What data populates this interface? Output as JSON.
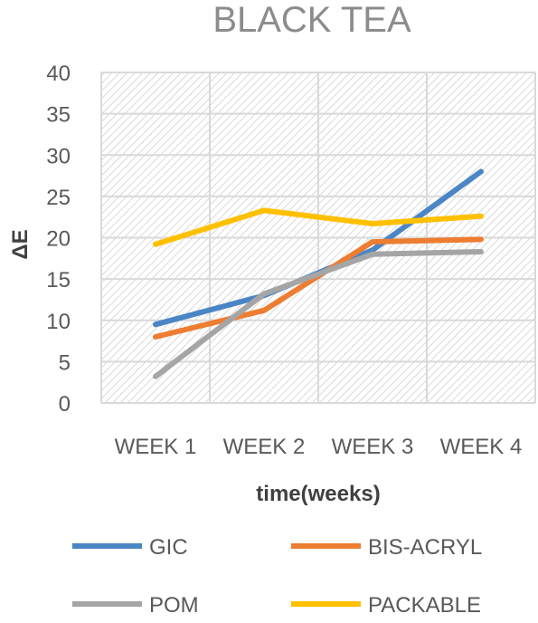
{
  "chart_data": {
    "type": "line",
    "title": "BLACK TEA",
    "xlabel": "time(weeks)",
    "ylabel": "ΔE",
    "categories": [
      "WEEK 1",
      "WEEK 2",
      "WEEK 3",
      "WEEK 4"
    ],
    "yticks": [
      "0",
      "5",
      "10",
      "15",
      "20",
      "25",
      "30",
      "35",
      "40"
    ],
    "ylim": [
      0,
      40
    ],
    "grid": true,
    "legend_position": "bottom",
    "series": [
      {
        "name": "GIC",
        "color": "#4A86C5",
        "values": [
          9.5,
          13,
          18.5,
          28
        ]
      },
      {
        "name": "BIS-ACRYL",
        "color": "#ED7D31",
        "values": [
          8,
          11.2,
          19.5,
          19.8
        ]
      },
      {
        "name": "POM",
        "color": "#A5A5A5",
        "values": [
          3.2,
          13.2,
          18,
          18.3
        ]
      },
      {
        "name": "PACKABLE",
        "color": "#FFC000",
        "values": [
          19.2,
          23.3,
          21.7,
          22.6
        ]
      }
    ]
  }
}
